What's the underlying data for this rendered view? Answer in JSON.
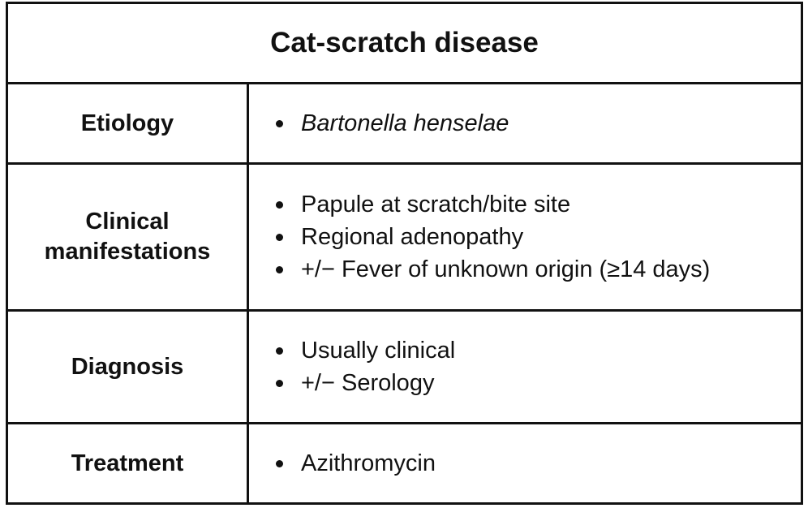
{
  "title": "Cat-scratch disease",
  "rows": [
    {
      "label_lines": [
        "Etiology"
      ],
      "items": [
        "Bartonella henselae"
      ]
    },
    {
      "label_lines": [
        "Clinical",
        "manifestations"
      ],
      "items": [
        "Papule at scratch/bite site",
        "Regional adenopathy",
        "+/− Fever of unknown origin (≥14 days)"
      ]
    },
    {
      "label_lines": [
        "Diagnosis"
      ],
      "items": [
        "Usually clinical",
        "+/− Serology"
      ]
    },
    {
      "label_lines": [
        "Treatment"
      ],
      "items": [
        "Azithromycin"
      ]
    }
  ]
}
